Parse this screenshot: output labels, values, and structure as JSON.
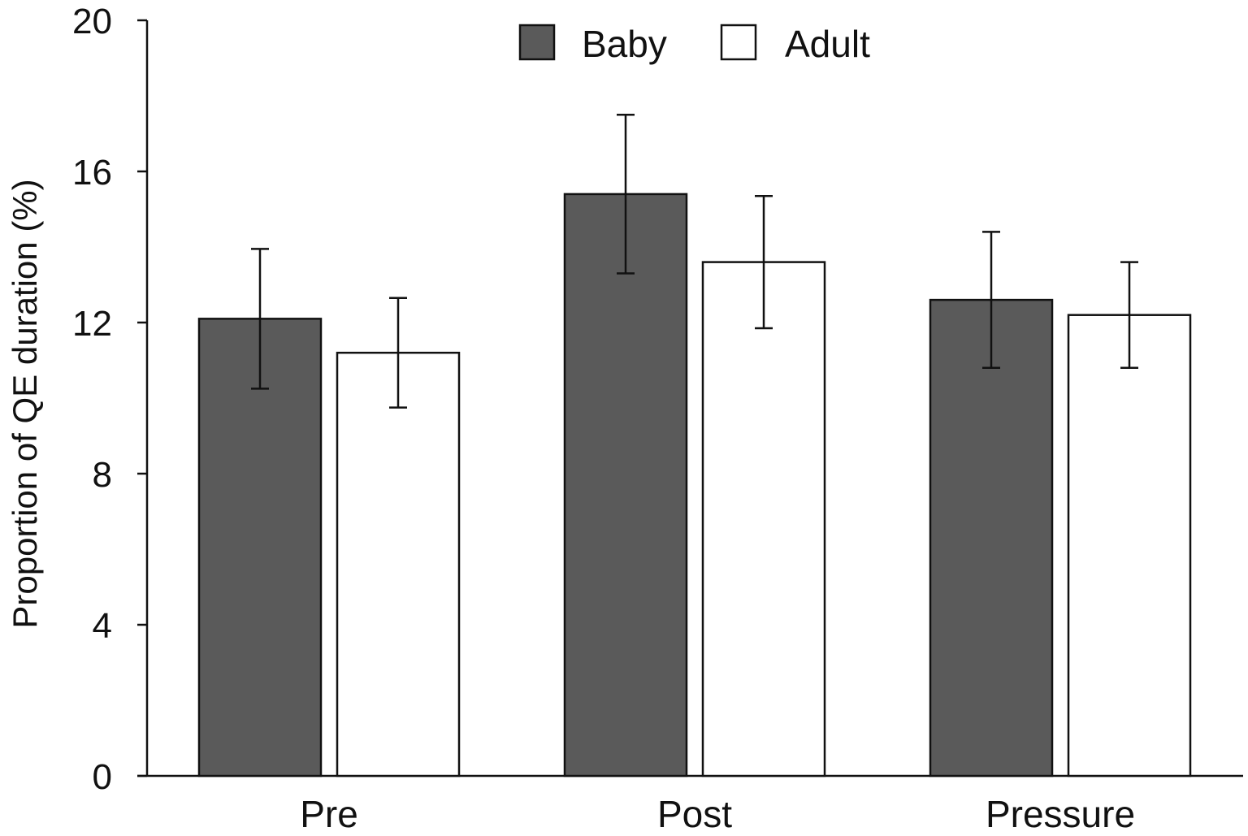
{
  "chart_data": {
    "type": "bar",
    "title": "",
    "xlabel": "",
    "ylabel": "Proportion of QE duration (%)",
    "ylim": [
      0,
      20
    ],
    "yticks": [
      0,
      4,
      8,
      12,
      16,
      20
    ],
    "categories": [
      "Pre",
      "Post",
      "Pressure"
    ],
    "series": [
      {
        "name": "Baby",
        "color": "#5a5a5a",
        "values": [
          12.1,
          15.4,
          12.6
        ],
        "errors": [
          1.85,
          2.1,
          1.8
        ]
      },
      {
        "name": "Adult",
        "color": "#ffffff",
        "values": [
          11.2,
          13.6,
          12.2
        ],
        "errors": [
          1.45,
          1.75,
          1.4
        ]
      }
    ],
    "legend": "top-center",
    "grid": false
  }
}
